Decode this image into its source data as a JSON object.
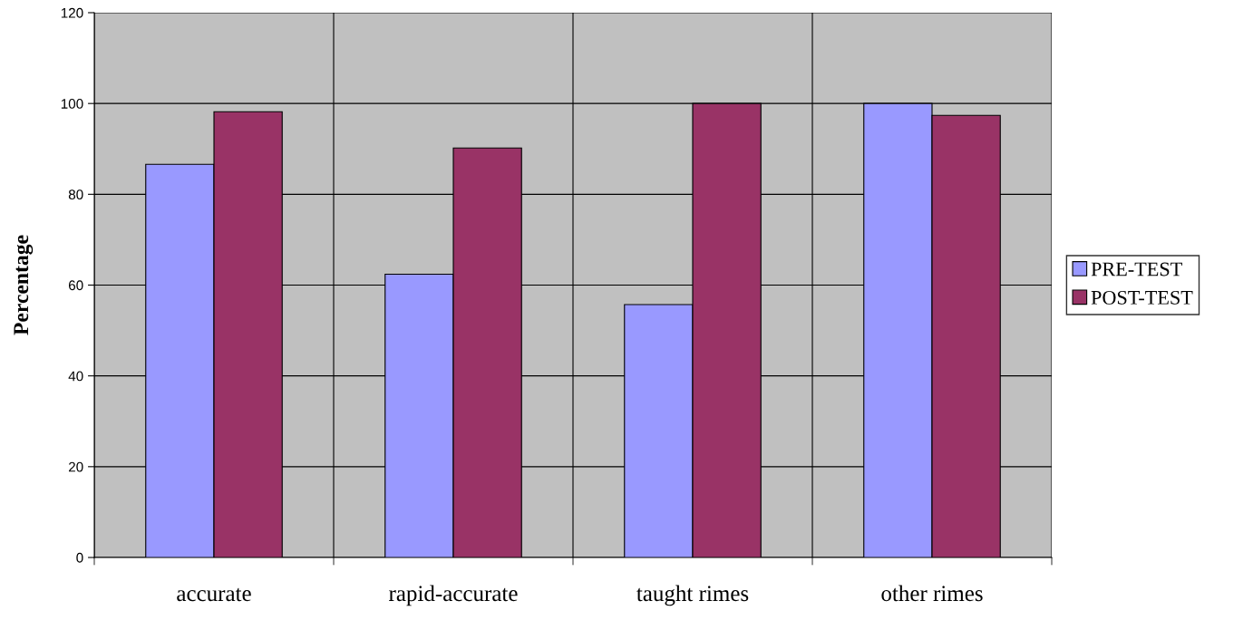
{
  "chart_data": {
    "type": "bar",
    "ylabel": "Percentage",
    "categories": [
      "accurate",
      "rapid-accurate",
      "taught rimes",
      "other rimes"
    ],
    "series": [
      {
        "name": "PRE-TEST",
        "color": "#9999ff",
        "values": [
          86.6,
          62.4,
          55.7,
          100
        ]
      },
      {
        "name": "POST-TEST",
        "color": "#993366",
        "values": [
          98.2,
          90.2,
          100,
          97.4
        ]
      }
    ],
    "ylim": [
      0,
      120
    ],
    "yticks": [
      0,
      20,
      40,
      60,
      80,
      100,
      120
    ],
    "grid": true,
    "legend": "right"
  }
}
